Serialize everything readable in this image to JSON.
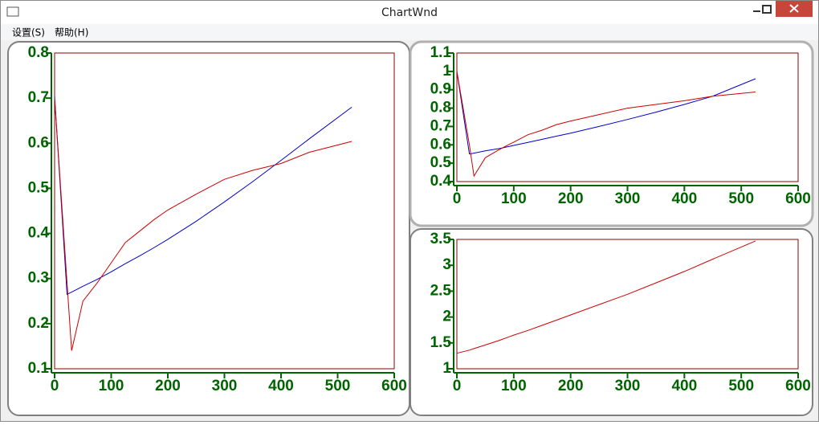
{
  "window": {
    "title": "ChartWnd"
  },
  "menu": [
    "设置(S)",
    "帮助(H)"
  ],
  "chart_data": [
    {
      "type": "line",
      "x": [
        0,
        22,
        30,
        50,
        75,
        100,
        125,
        150,
        175,
        200,
        250,
        300,
        350,
        400,
        450,
        525
      ],
      "xlim": [
        0,
        600
      ],
      "xticks": [
        0,
        100,
        200,
        300,
        400,
        500,
        600
      ],
      "ylim": [
        0.1,
        0.8
      ],
      "yticks": [
        0.1,
        0.2,
        0.3,
        0.4,
        0.5,
        0.6,
        0.7,
        0.8
      ],
      "axis_color": "#006400",
      "frame_color": "#8b0000",
      "series": [
        {
          "color": "#0000cc",
          "values": [
            0.704,
            0.265,
            0.27,
            0.283,
            0.298,
            0.315,
            0.333,
            0.35,
            0.368,
            0.387,
            0.427,
            0.47,
            0.515,
            0.562,
            0.61,
            0.68
          ]
        },
        {
          "color": "#cc0000",
          "values": [
            0.7,
            0.29,
            0.14,
            0.25,
            0.29,
            0.335,
            0.38,
            0.405,
            0.43,
            0.452,
            0.487,
            0.52,
            0.54,
            0.555,
            0.58,
            0.604
          ]
        }
      ]
    },
    {
      "type": "line",
      "x": [
        0,
        22,
        30,
        50,
        75,
        100,
        125,
        150,
        175,
        200,
        250,
        300,
        350,
        400,
        450,
        525
      ],
      "xlim": [
        0,
        600
      ],
      "xticks": [
        0,
        100,
        200,
        300,
        400,
        500,
        600
      ],
      "ylim": [
        0.4,
        1.1
      ],
      "yticks": [
        0.4,
        0.5,
        0.6,
        0.7,
        0.8,
        0.9,
        1,
        1.1
      ],
      "axis_color": "#006400",
      "frame_color": "#8b0000",
      "series": [
        {
          "color": "#0000cc",
          "values": [
            1.0,
            0.55,
            0.555,
            0.567,
            0.58,
            0.597,
            0.613,
            0.63,
            0.647,
            0.664,
            0.7,
            0.738,
            0.778,
            0.82,
            0.865,
            0.96
          ]
        },
        {
          "color": "#cc0000",
          "values": [
            1.0,
            0.6,
            0.43,
            0.53,
            0.575,
            0.615,
            0.655,
            0.68,
            0.71,
            0.73,
            0.765,
            0.8,
            0.82,
            0.84,
            0.865,
            0.888
          ]
        }
      ]
    },
    {
      "type": "line",
      "x": [
        0,
        22,
        30,
        50,
        75,
        100,
        125,
        150,
        175,
        200,
        250,
        300,
        350,
        400,
        450,
        525
      ],
      "xlim": [
        0,
        600
      ],
      "xticks": [
        0,
        100,
        200,
        300,
        400,
        500,
        600
      ],
      "ylim": [
        1,
        3.5
      ],
      "yticks": [
        1,
        1.5,
        2,
        2.5,
        3,
        3.5
      ],
      "axis_color": "#006400",
      "frame_color": "#8b0000",
      "series": [
        {
          "color": "#cc0000",
          "values": [
            1.3,
            1.36,
            1.39,
            1.46,
            1.55,
            1.65,
            1.74,
            1.84,
            1.94,
            2.04,
            2.24,
            2.44,
            2.66,
            2.88,
            3.12,
            3.47
          ]
        }
      ]
    }
  ]
}
